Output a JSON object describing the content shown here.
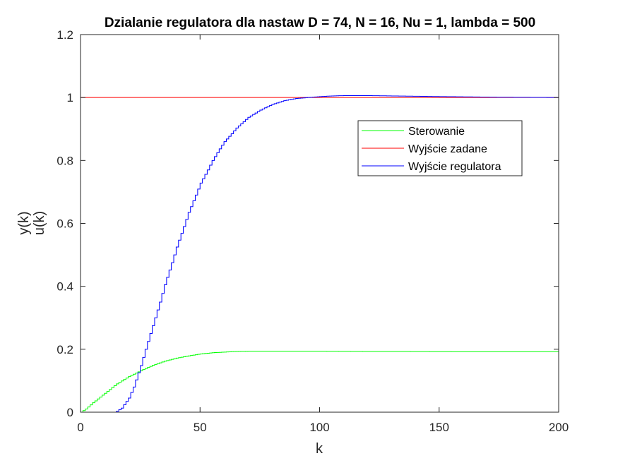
{
  "chart_data": {
    "type": "line",
    "title": "Dzialanie regulatora dla nastaw D = 74, N = 16, Nu = 1, lambda = 500",
    "xlabel": "k",
    "ylabel": [
      "y(k)",
      "u(k)"
    ],
    "xlim": [
      0,
      200
    ],
    "ylim": [
      0,
      1.2
    ],
    "xticks": [
      0,
      50,
      100,
      150,
      200
    ],
    "yticks": [
      0,
      0.2,
      0.4,
      0.6,
      0.8,
      1,
      1.2
    ],
    "xtick_labels": [
      "0",
      "50",
      "100",
      "150",
      "200"
    ],
    "ytick_labels": [
      "0",
      "0.2",
      "0.4",
      "0.6",
      "0.8",
      "1",
      "1.2"
    ],
    "grid": false,
    "legend_position": "upper-right",
    "step": true,
    "series": [
      {
        "name": "Sterowanie",
        "color": "#00ff00",
        "x": [
          0,
          2,
          5,
          10,
          15,
          20,
          25,
          30,
          35,
          40,
          45,
          50,
          55,
          60,
          65,
          70,
          80,
          100,
          118,
          130,
          160,
          200
        ],
        "y": [
          0,
          0.01,
          0.03,
          0.06,
          0.09,
          0.113,
          0.132,
          0.149,
          0.162,
          0.172,
          0.179,
          0.185,
          0.189,
          0.191,
          0.193,
          0.194,
          0.194,
          0.194,
          0.193,
          0.193,
          0.192,
          0.192
        ]
      },
      {
        "name": "Wyjście zadane",
        "color": "#ff0000",
        "x": [
          0,
          200
        ],
        "y": [
          1,
          1
        ]
      },
      {
        "name": "Wyjście regulatora",
        "color": "#0000ff",
        "x": [
          0,
          14,
          15,
          17,
          20,
          22,
          25,
          27,
          30,
          33,
          35,
          38,
          40,
          43,
          45,
          48,
          50,
          53,
          55,
          58,
          60,
          63,
          65,
          70,
          75,
          80,
          85,
          90,
          95,
          100,
          105,
          110,
          120,
          130,
          150,
          175,
          200
        ],
        "y": [
          0,
          0,
          0.003,
          0.013,
          0.045,
          0.08,
          0.148,
          0.2,
          0.275,
          0.35,
          0.405,
          0.475,
          0.525,
          0.59,
          0.635,
          0.69,
          0.728,
          0.77,
          0.8,
          0.837,
          0.86,
          0.885,
          0.903,
          0.937,
          0.96,
          0.978,
          0.99,
          0.997,
          1.0,
          1.003,
          1.005,
          1.006,
          1.006,
          1.005,
          1.003,
          1.001,
          1.0
        ]
      }
    ]
  }
}
